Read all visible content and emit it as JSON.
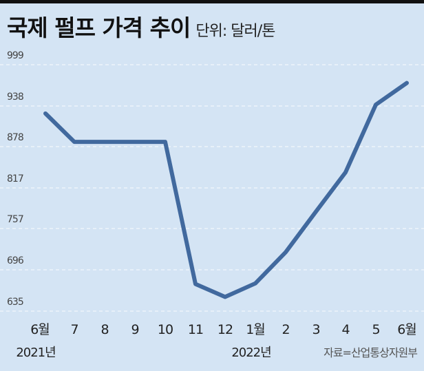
{
  "chart_data": {
    "type": "line",
    "title": "국제 펄프 가격 추이",
    "unit": "단위: 달러/톤",
    "categories": [
      "6월",
      "7",
      "8",
      "9",
      "10",
      "11",
      "12",
      "1월",
      "2",
      "3",
      "4",
      "5",
      "6월"
    ],
    "year_labels": [
      {
        "label": "2021년",
        "at_index": 0
      },
      {
        "label": "2022년",
        "at_index": 7
      }
    ],
    "yticks": [
      999,
      938,
      878,
      817,
      757,
      696,
      635
    ],
    "ylim": [
      635,
      999
    ],
    "series": [
      {
        "name": "국제 펄프 가격",
        "color": "#41699e",
        "values": [
          927,
          885,
          885,
          885,
          885,
          675,
          656,
          676,
          722,
          782,
          840,
          940,
          972
        ]
      }
    ],
    "grid": true,
    "source": "자료=산업통상자원부",
    "xlabel": "",
    "ylabel": ""
  }
}
